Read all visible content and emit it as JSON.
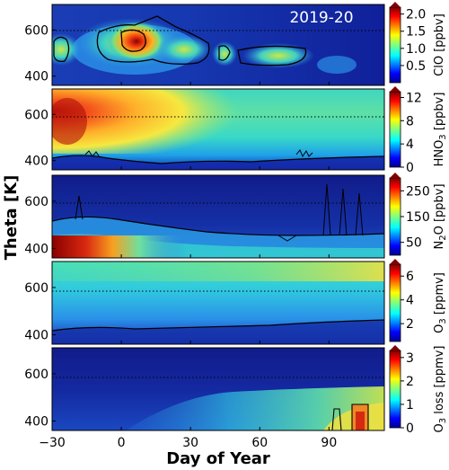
{
  "figure": {
    "title": "2019-20",
    "xlabel": "Day of Year",
    "ylabel": "Theta [K]"
  },
  "chart_data": {
    "type": "heatmap",
    "x_ticks": [
      -30,
      0,
      30,
      60,
      90
    ],
    "x_range": [
      -30,
      114
    ],
    "y_ticks": [
      400,
      600
    ],
    "y_range": [
      360,
      710
    ],
    "reference_theta": 580,
    "panels": [
      {
        "id": "clo",
        "colorbar_label": "ClO [ppbv]",
        "colorbar_range": [
          0,
          2.2
        ],
        "colorbar_ticks": [
          "0.5",
          "1.0",
          "1.5",
          "2.0"
        ],
        "colorbar_tick_values": [
          0.5,
          1.0,
          1.5,
          2.0
        ]
      },
      {
        "id": "hno3",
        "colorbar_label": "HNO3 [ppbv]",
        "colorbar_range": [
          0,
          13
        ],
        "colorbar_ticks": [
          "0",
          "4",
          "8",
          "12"
        ],
        "colorbar_tick_values": [
          0,
          4,
          8,
          12
        ]
      },
      {
        "id": "n2o",
        "colorbar_label": "N2O [ppbv]",
        "colorbar_range": [
          0,
          300
        ],
        "colorbar_ticks": [
          "50",
          "150",
          "250"
        ],
        "colorbar_tick_values": [
          50,
          150,
          250
        ]
      },
      {
        "id": "o3",
        "colorbar_label": "O3 [ppmv]",
        "colorbar_range": [
          0.5,
          7
        ],
        "colorbar_ticks": [
          "2",
          "4",
          "6"
        ],
        "colorbar_tick_values": [
          2,
          4,
          6
        ]
      },
      {
        "id": "o3loss",
        "colorbar_label": "O3 loss [ppmv]",
        "colorbar_range": [
          0,
          3.3
        ],
        "colorbar_ticks": [
          "0",
          "1",
          "2",
          "3"
        ],
        "colorbar_tick_values": [
          0,
          1,
          2,
          3
        ]
      }
    ]
  },
  "colors": {
    "low": "#1a2a9c",
    "mid_low": "#1c7fe0",
    "mid": "#22d3d0",
    "mid_high": "#ffe14a",
    "high": "#f13a1f",
    "max": "#7f0000"
  }
}
